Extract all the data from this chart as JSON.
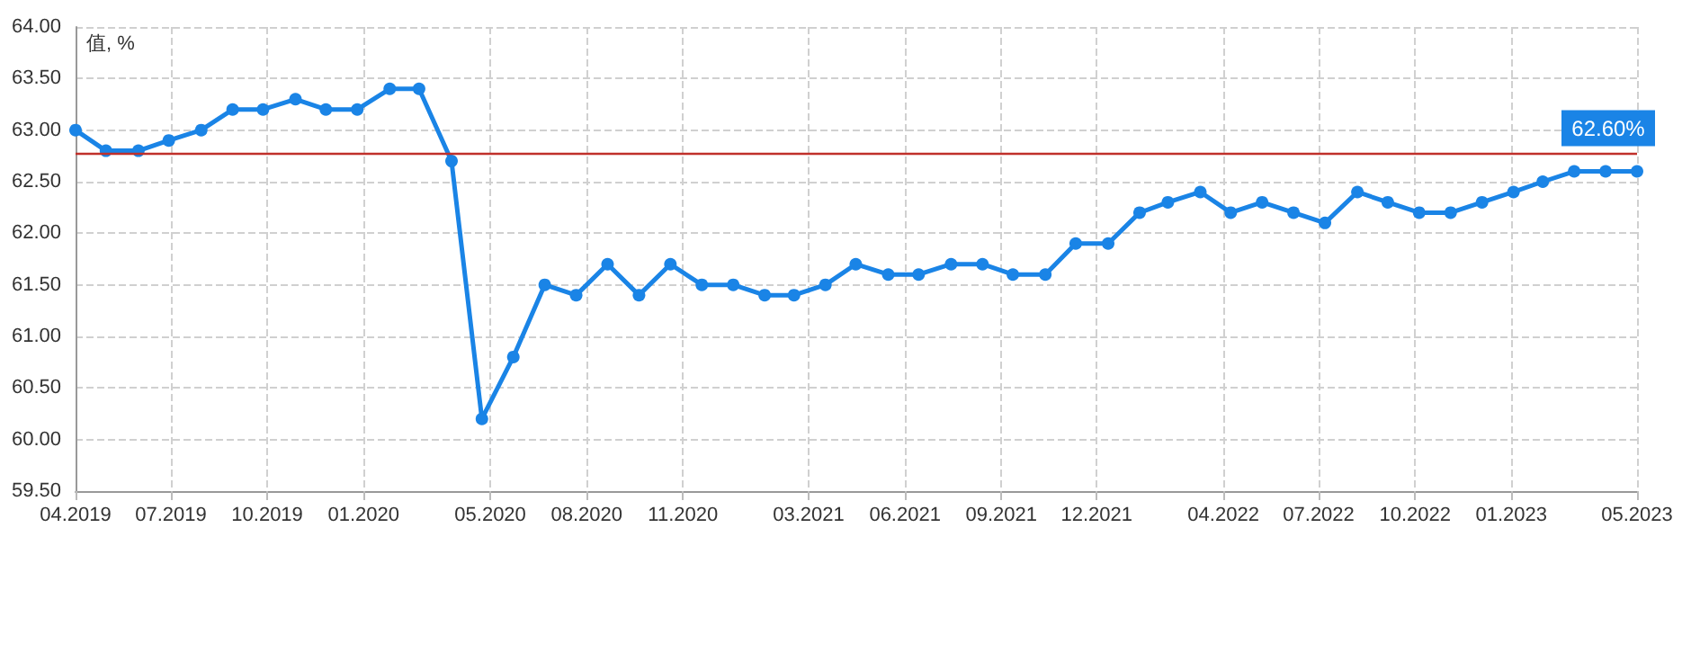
{
  "chart_data": {
    "type": "line",
    "ylabel": "值, %",
    "x": [
      "2019-04-01",
      "2019-04-30",
      "2019-05-31",
      "2019-06-29",
      "2019-07-30",
      "2019-08-29",
      "2019-09-27",
      "2019-10-28",
      "2019-11-26",
      "2019-12-26",
      "2020-01-26",
      "2020-02-23",
      "2020-03-25",
      "2020-04-23",
      "2020-05-23",
      "2020-06-22",
      "2020-07-22",
      "2020-08-21",
      "2020-09-20",
      "2020-10-20",
      "2020-11-19",
      "2020-12-19",
      "2021-01-18",
      "2021-02-15",
      "2021-03-17",
      "2021-04-15",
      "2021-05-16",
      "2021-06-14",
      "2021-07-15",
      "2021-08-14",
      "2021-09-12",
      "2021-10-13",
      "2021-11-11",
      "2021-12-12",
      "2022-01-11",
      "2022-02-07",
      "2022-03-10",
      "2022-04-08",
      "2022-05-08",
      "2022-06-07",
      "2022-07-07",
      "2022-08-07",
      "2022-09-05",
      "2022-10-05",
      "2022-11-04",
      "2022-12-04",
      "2023-01-03",
      "2023-01-31",
      "2023-03-02",
      "2023-04-01",
      "2023-05-01"
    ],
    "series": [
      {
        "color": "#1a84e6",
        "values": [
          63.0,
          62.8,
          62.8,
          62.9,
          63.0,
          63.2,
          63.2,
          63.3,
          63.2,
          63.2,
          63.4,
          63.4,
          62.7,
          60.2,
          60.8,
          61.5,
          61.4,
          61.7,
          61.4,
          61.7,
          61.5,
          61.5,
          61.4,
          61.4,
          61.5,
          61.7,
          61.6,
          61.6,
          61.7,
          61.7,
          61.6,
          61.6,
          61.9,
          61.9,
          62.2,
          62.3,
          62.4,
          62.2,
          62.3,
          62.2,
          62.1,
          62.4,
          62.3,
          62.2,
          62.2,
          62.3,
          62.4,
          62.5,
          62.6,
          62.6,
          62.6
        ]
      }
    ],
    "xlim": [
      "2019-04-01",
      "2023-05-01"
    ],
    "xticks": [
      {
        "value": "2019-04-01",
        "label": "04.2019"
      },
      {
        "value": "2019-07-01",
        "label": "07.2019"
      },
      {
        "value": "2019-10-01",
        "label": "10.2019"
      },
      {
        "value": "2020-01-01",
        "label": "01.2020"
      },
      {
        "value": "2020-05-01",
        "label": "05.2020"
      },
      {
        "value": "2020-08-01",
        "label": "08.2020"
      },
      {
        "value": "2020-11-01",
        "label": "11.2020"
      },
      {
        "value": "2021-03-01",
        "label": "03.2021"
      },
      {
        "value": "2021-06-01",
        "label": "06.2021"
      },
      {
        "value": "2021-09-01",
        "label": "09.2021"
      },
      {
        "value": "2021-12-01",
        "label": "12.2021"
      },
      {
        "value": "2022-04-01",
        "label": "04.2022"
      },
      {
        "value": "2022-07-01",
        "label": "07.2022"
      },
      {
        "value": "2022-10-01",
        "label": "10.2022"
      },
      {
        "value": "2023-01-01",
        "label": "01.2023"
      },
      {
        "value": "2023-05-01",
        "label": "05.2023"
      }
    ],
    "ylim": [
      59.5,
      64
    ],
    "yticks": [
      {
        "value": 59.5,
        "label": "59.50"
      },
      {
        "value": 60,
        "label": "60.00"
      },
      {
        "value": 60.5,
        "label": "60.50"
      },
      {
        "value": 61,
        "label": "61.00"
      },
      {
        "value": 61.5,
        "label": "61.50"
      },
      {
        "value": 62,
        "label": "62.00"
      },
      {
        "value": 62.5,
        "label": "62.50"
      },
      {
        "value": 63,
        "label": "63.00"
      },
      {
        "value": 63.5,
        "label": "63.50"
      },
      {
        "value": 64,
        "label": "64.00"
      }
    ],
    "ref_lines": [
      {
        "axis": "y",
        "value": 62.78,
        "color": "#c0302b"
      }
    ],
    "annotations": [
      {
        "text": "62.60%",
        "x": "2023-05-01",
        "y": 62.6
      }
    ],
    "grid": true,
    "marker": "circle",
    "line_style": "solid"
  }
}
